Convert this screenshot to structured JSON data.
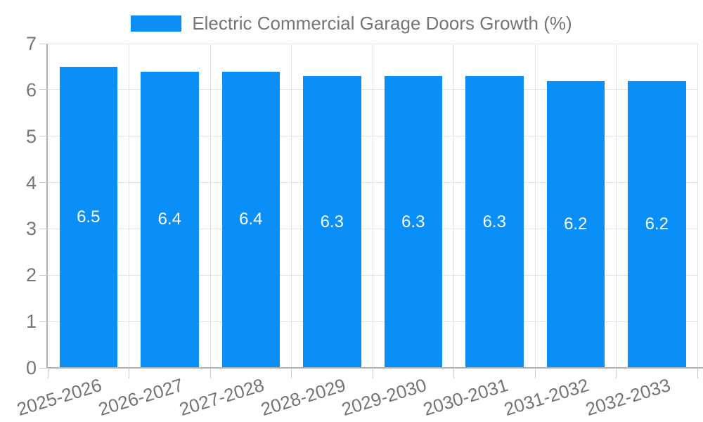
{
  "legend": {
    "label": "Electric Commercial Garage Doors Growth (%)"
  },
  "chart_data": {
    "type": "bar",
    "title": "Electric Commercial Garage Doors Growth (%)",
    "categories": [
      "2025-2026",
      "2026-2027",
      "2027-2028",
      "2028-2029",
      "2029-2030",
      "2030-2031",
      "2031-2032",
      "2032-2033"
    ],
    "values": [
      6.5,
      6.4,
      6.4,
      6.3,
      6.3,
      6.3,
      6.2,
      6.2
    ],
    "value_labels": [
      "6.5",
      "6.4",
      "6.4",
      "6.3",
      "6.3",
      "6.3",
      "6.2",
      "6.2"
    ],
    "xlabel": "",
    "ylabel": "",
    "ylim": [
      0,
      7
    ],
    "y_ticks": [
      0,
      1,
      2,
      3,
      4,
      5,
      6,
      7
    ],
    "legend_entries": [
      "Electric Commercial Garage Doors Growth (%)"
    ],
    "legend_position": "top",
    "grid": "on",
    "x_label_rotation_deg": -17,
    "colors": {
      "bar": "#0a8ff9",
      "value_label": "#ffffff",
      "axis_text": "#757575",
      "gridline": "#e3e3e3",
      "axis_line": "#b0b0b0",
      "tick": "#c9c9c9",
      "background": "#ffffff"
    }
  }
}
